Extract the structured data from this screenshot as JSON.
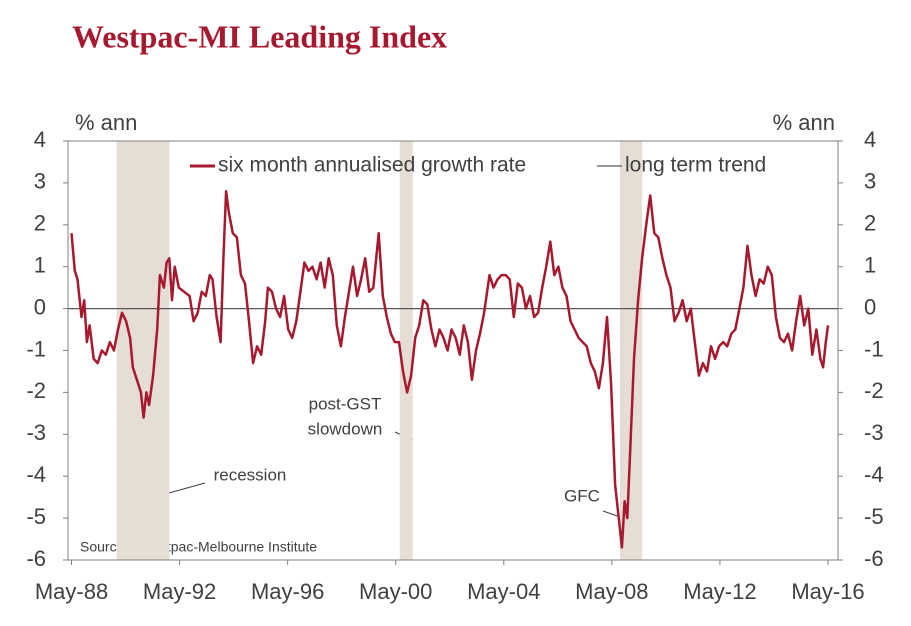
{
  "chart_data": {
    "type": "line",
    "title": "Westpac-MI Leading Index",
    "y_label": "% ann",
    "y2_label": "% ann",
    "source": "Sources: Westpac-Melbourne Institute",
    "annotations": [
      "recession",
      "post-GST",
      "slowdown",
      "GFC"
    ],
    "shaded_periods": [
      {
        "start": 1990.0,
        "end": 1991.95
      },
      {
        "start": 2000.48,
        "end": 2000.96
      },
      {
        "start": 2008.63,
        "end": 2009.45
      }
    ],
    "shade_color": "#e6ddd5",
    "xlim": [
      1988.2,
      2016.7
    ],
    "xticks": [
      {
        "value": 1988.33,
        "label": "May-88"
      },
      {
        "value": 1992.33,
        "label": "May-92"
      },
      {
        "value": 1996.33,
        "label": "May-96"
      },
      {
        "value": 2000.33,
        "label": "May-00"
      },
      {
        "value": 2004.33,
        "label": "May-04"
      },
      {
        "value": 2008.33,
        "label": "May-08"
      },
      {
        "value": 2012.33,
        "label": "May-12"
      },
      {
        "value": 2016.33,
        "label": "May-16"
      }
    ],
    "ylim": [
      -6,
      4
    ],
    "yticks": [
      -6,
      -5,
      -4,
      -3,
      -2,
      -1,
      0,
      1,
      2,
      3,
      4
    ],
    "y2lim": [
      -6,
      4
    ],
    "y2ticks": [
      -6,
      -5,
      -4,
      -3,
      -2,
      -1,
      0,
      1,
      2,
      3,
      4
    ],
    "series": [
      {
        "name": "six month annualised growth rate",
        "color": "#a6192e",
        "x": [
          1988.33,
          1988.45,
          1988.55,
          1988.7,
          1988.8,
          1988.9,
          1989.0,
          1989.15,
          1989.3,
          1989.45,
          1989.6,
          1989.75,
          1989.9,
          1990.05,
          1990.2,
          1990.35,
          1990.5,
          1990.6,
          1990.75,
          1990.9,
          1991.0,
          1991.1,
          1991.2,
          1991.35,
          1991.5,
          1991.6,
          1991.75,
          1991.85,
          1991.95,
          1992.05,
          1992.15,
          1992.3,
          1992.5,
          1992.7,
          1992.85,
          1993.0,
          1993.15,
          1993.3,
          1993.45,
          1993.55,
          1993.7,
          1993.85,
          1993.95,
          1994.05,
          1994.15,
          1994.3,
          1994.45,
          1994.6,
          1994.75,
          1994.9,
          1995.05,
          1995.2,
          1995.35,
          1995.5,
          1995.6,
          1995.75,
          1995.9,
          1996.05,
          1996.2,
          1996.35,
          1996.5,
          1996.65,
          1996.8,
          1996.95,
          1997.1,
          1997.25,
          1997.4,
          1997.55,
          1997.7,
          1997.85,
          1998.0,
          1998.15,
          1998.3,
          1998.45,
          1998.6,
          1998.75,
          1998.9,
          1999.05,
          1999.2,
          1999.35,
          1999.5,
          1999.7,
          1999.85,
          2000.0,
          2000.15,
          2000.3,
          2000.45,
          2000.6,
          2000.75,
          2000.9,
          2001.05,
          2001.2,
          2001.35,
          2001.5,
          2001.65,
          2001.8,
          2001.95,
          2002.1,
          2002.25,
          2002.4,
          2002.55,
          2002.7,
          2002.85,
          2003.0,
          2003.15,
          2003.3,
          2003.45,
          2003.6,
          2003.8,
          2003.95,
          2004.1,
          2004.25,
          2004.4,
          2004.55,
          2004.7,
          2004.85,
          2005.0,
          2005.15,
          2005.3,
          2005.45,
          2005.6,
          2005.75,
          2005.9,
          2006.05,
          2006.2,
          2006.35,
          2006.5,
          2006.65,
          2006.8,
          2006.95,
          2007.1,
          2007.25,
          2007.4,
          2007.55,
          2007.7,
          2007.85,
          2008.0,
          2008.15,
          2008.3,
          2008.45,
          2008.6,
          2008.7,
          2008.8,
          2008.9,
          2009.0,
          2009.15,
          2009.3,
          2009.45,
          2009.6,
          2009.75,
          2009.9,
          2010.05,
          2010.2,
          2010.35,
          2010.5,
          2010.65,
          2010.8,
          2010.95,
          2011.1,
          2011.25,
          2011.4,
          2011.55,
          2011.7,
          2011.85,
          2012.0,
          2012.15,
          2012.3,
          2012.45,
          2012.6,
          2012.75,
          2012.9,
          2013.05,
          2013.2,
          2013.35,
          2013.5,
          2013.65,
          2013.8,
          2013.95,
          2014.1,
          2014.25,
          2014.4,
          2014.55,
          2014.7,
          2014.85,
          2015.0,
          2015.15,
          2015.3,
          2015.45,
          2015.6,
          2015.75,
          2015.9,
          2016.05,
          2016.15,
          2016.25,
          2016.33
        ],
        "values": [
          1.8,
          0.9,
          0.7,
          -0.2,
          0.2,
          -0.8,
          -0.4,
          -1.2,
          -1.3,
          -1.0,
          -1.1,
          -0.8,
          -1.0,
          -0.5,
          -0.1,
          -0.3,
          -0.7,
          -1.4,
          -1.7,
          -2.0,
          -2.6,
          -2.0,
          -2.3,
          -1.6,
          -0.5,
          0.8,
          0.5,
          1.1,
          1.2,
          0.2,
          1.0,
          0.5,
          0.4,
          0.3,
          -0.3,
          -0.1,
          0.4,
          0.3,
          0.8,
          0.7,
          -0.2,
          -0.8,
          1.2,
          2.8,
          2.3,
          1.8,
          1.7,
          0.8,
          0.6,
          -0.3,
          -1.3,
          -0.9,
          -1.1,
          -0.3,
          0.5,
          0.4,
          0.0,
          -0.2,
          0.3,
          -0.5,
          -0.7,
          -0.3,
          0.4,
          1.1,
          0.9,
          1.0,
          0.7,
          1.1,
          0.5,
          1.2,
          0.8,
          -0.4,
          -0.9,
          -0.2,
          0.4,
          1.0,
          0.3,
          0.7,
          1.2,
          0.4,
          0.5,
          1.8,
          0.3,
          -0.2,
          -0.6,
          -0.8,
          -0.8,
          -1.5,
          -2.0,
          -1.6,
          -0.7,
          -0.4,
          0.2,
          0.1,
          -0.5,
          -0.9,
          -0.5,
          -0.7,
          -1.0,
          -0.5,
          -0.7,
          -1.1,
          -0.4,
          -0.8,
          -1.7,
          -1.0,
          -0.6,
          -0.1,
          0.8,
          0.5,
          0.7,
          0.8,
          0.8,
          0.7,
          -0.2,
          0.6,
          0.5,
          0.0,
          0.3,
          -0.2,
          -0.1,
          0.5,
          1.0,
          1.6,
          0.8,
          1.0,
          0.5,
          0.3,
          -0.3,
          -0.5,
          -0.7,
          -0.8,
          -0.9,
          -1.3,
          -1.5,
          -1.9,
          -1.3,
          -0.2,
          -1.8,
          -4.2,
          -5.1,
          -5.7,
          -4.6,
          -5.0,
          -3.5,
          -1.2,
          0.2,
          1.2,
          2.0,
          2.7,
          1.8,
          1.7,
          1.2,
          0.8,
          0.5,
          -0.3,
          -0.1,
          0.2,
          -0.3,
          0.0,
          -0.8,
          -1.6,
          -1.3,
          -1.5,
          -0.9,
          -1.2,
          -0.9,
          -0.8,
          -0.9,
          -0.6,
          -0.5,
          0.0,
          0.5,
          1.5,
          0.8,
          0.3,
          0.7,
          0.6,
          1.0,
          0.8,
          -0.2,
          -0.7,
          -0.8,
          -0.6,
          -1.0,
          -0.3,
          0.3,
          -0.4,
          0.0,
          -1.1,
          -0.5,
          -1.2,
          -1.4,
          -0.8,
          -0.4
        ]
      },
      {
        "name": "long term trend",
        "color": "#595959",
        "x": [
          1988.2,
          2016.7
        ],
        "values": [
          0,
          0
        ]
      }
    ]
  }
}
